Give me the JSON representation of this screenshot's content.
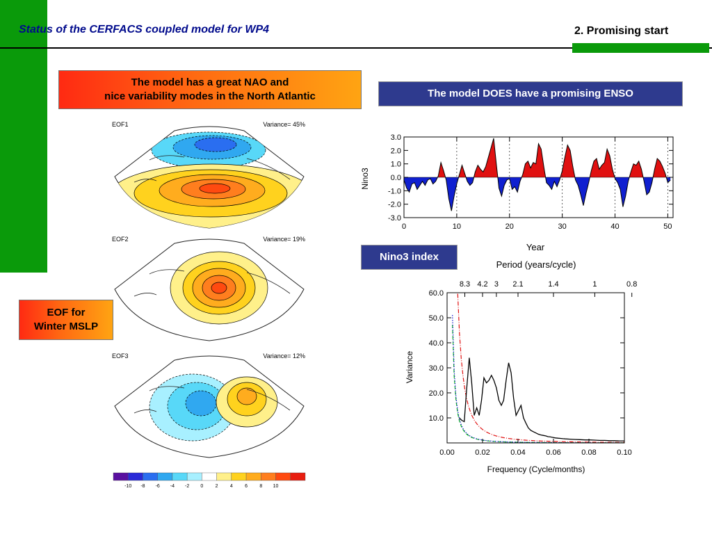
{
  "header": {
    "title": "Status of the CERFACS coupled model for WP4",
    "section": "2. Promising start"
  },
  "boxes": {
    "nao_line1": "The model has a great NAO and",
    "nao_line2": "nice variability modes in the North Atlantic",
    "eof_line1": "EOF for",
    "eof_line2": "Winter MSLP",
    "enso": "The model DOES have a promising ENSO",
    "nino3": "Nino3 index"
  },
  "maps": [
    {
      "label": "EOF1",
      "variance": "Variance= 45%"
    },
    {
      "label": "EOF2",
      "variance": "Variance= 19%"
    },
    {
      "label": "EOF3",
      "variance": "Variance= 12%"
    }
  ],
  "colorbar": {
    "ticks": [
      "-10",
      "-8",
      "-6",
      "-4",
      "-2",
      "0",
      "2",
      "4",
      "6",
      "8",
      "10"
    ],
    "colors": [
      "#5a10a0",
      "#2a2ad8",
      "#2a6ef0",
      "#30a8f0",
      "#58d8f8",
      "#a8f0ff",
      "#ffffff",
      "#fff08a",
      "#ffd21e",
      "#ffac1e",
      "#ff7e1e",
      "#ff4a10",
      "#e81e10"
    ]
  },
  "colors": {
    "positive": "#e01010",
    "negative": "#1020d0",
    "brand_green": "#0a9a0a"
  },
  "chart_data": [
    {
      "type": "area",
      "ylabel": "Nino3",
      "xlabel": "Year",
      "xlim": [
        0,
        51
      ],
      "ylim": [
        -3,
        3
      ],
      "xticks": [
        0,
        10,
        20,
        30,
        40,
        50
      ],
      "yticks": [
        "3.0",
        "2.0",
        "1.0",
        "0.0",
        "-1.0",
        "-2.0",
        "-3.0"
      ],
      "dashed_verticals": [
        10,
        20,
        30,
        40,
        50
      ],
      "x": [
        0,
        0.5,
        1,
        1.5,
        2,
        2.5,
        3,
        3.5,
        4,
        4.5,
        5,
        5.5,
        6,
        6.5,
        7,
        7.5,
        8,
        8.5,
        9,
        9.5,
        10,
        10.5,
        11,
        11.5,
        12,
        12.5,
        13,
        13.5,
        14,
        14.5,
        15,
        15.5,
        16,
        16.5,
        17,
        17.5,
        18,
        18.5,
        19,
        19.5,
        20,
        20.5,
        21,
        21.5,
        22,
        22.5,
        23,
        23.5,
        24,
        24.5,
        25,
        25.5,
        26,
        26.5,
        27,
        27.5,
        28,
        28.5,
        29,
        29.5,
        30,
        30.5,
        31,
        31.5,
        32,
        32.5,
        33,
        33.5,
        34,
        34.5,
        35,
        35.5,
        36,
        36.5,
        37,
        37.5,
        38,
        38.5,
        39,
        39.5,
        40,
        40.5,
        41,
        41.5,
        42,
        42.5,
        43,
        43.5,
        44,
        44.5,
        45,
        45.5,
        46,
        46.5,
        47,
        47.5,
        48,
        48.5,
        49,
        49.5,
        50,
        50.5
      ],
      "y": [
        -0.2,
        -0.8,
        -1.1,
        -0.5,
        -0.4,
        -0.9,
        -0.6,
        -0.3,
        -0.6,
        -0.2,
        -0.1,
        -0.5,
        -0.3,
        0.1,
        1.1,
        0.5,
        -0.2,
        -1.6,
        -2.5,
        -1.4,
        -0.5,
        0.2,
        0.9,
        0.3,
        -0.3,
        -0.6,
        -0.4,
        0.4,
        0.9,
        0.6,
        0.4,
        0.8,
        1.5,
        2.2,
        2.9,
        1.0,
        -0.8,
        -1.4,
        -0.6,
        -0.2,
        -0.1,
        -0.9,
        -0.7,
        -1.1,
        -0.3,
        0.2,
        1.0,
        1.2,
        0.7,
        1.1,
        1.0,
        2.5,
        2.1,
        0.8,
        -0.4,
        -0.6,
        -0.9,
        -0.3,
        -0.7,
        -0.2,
        0.5,
        1.5,
        2.4,
        2.0,
        0.8,
        -0.2,
        -0.6,
        -1.3,
        -2.1,
        -1.2,
        -0.4,
        0.5,
        1.2,
        1.4,
        0.6,
        0.9,
        1.1,
        2.1,
        1.6,
        0.6,
        -0.1,
        -0.4,
        -0.9,
        -2.2,
        -1.4,
        -0.3,
        0.4,
        1.0,
        0.9,
        1.2,
        0.6,
        -0.3,
        -1.3,
        -1.1,
        -0.4,
        0.6,
        1.4,
        1.2,
        0.8,
        0.3,
        -0.4,
        -0.2
      ]
    },
    {
      "type": "line",
      "ylabel": "Variance",
      "xlabel": "Frequency (Cycle/months)",
      "top_axis_label": "Period (years/cycle)",
      "top_ticks": [
        "8.3",
        "4.2",
        "3",
        "2.1",
        "1.4",
        "1",
        "0.8"
      ],
      "top_tick_freqs": [
        0.01,
        0.02,
        0.0278,
        0.04,
        0.06,
        0.0833,
        0.1042
      ],
      "xlim": [
        0,
        0.1
      ],
      "ylim": [
        0,
        60
      ],
      "xticks": [
        "0.00",
        "0.02",
        "0.04",
        "0.06",
        "0.08",
        "0.10"
      ],
      "yticks": [
        "10.0",
        "20.0",
        "30.0",
        "40.0",
        "50.0",
        "60.0"
      ],
      "series": [
        {
          "style": "black-solid",
          "x": [
            0.0069,
            0.0083,
            0.0097,
            0.011,
            0.0125,
            0.0139,
            0.0153,
            0.0167,
            0.0181,
            0.0194,
            0.0208,
            0.0222,
            0.0236,
            0.025,
            0.0264,
            0.0278,
            0.0292,
            0.0306,
            0.0319,
            0.0333,
            0.0347,
            0.0361,
            0.0375,
            0.0389,
            0.0403,
            0.0417,
            0.0431,
            0.0444,
            0.0458,
            0.0472,
            0.0486,
            0.05,
            0.0514,
            0.0528,
            0.0542,
            0.0556,
            0.0569,
            0.0583,
            0.0597,
            0.0611,
            0.0625,
            0.0639,
            0.0653,
            0.0667,
            0.0694,
            0.0722,
            0.075,
            0.0778,
            0.0806,
            0.0833,
            0.0861,
            0.0889,
            0.0917,
            0.0944,
            0.0972,
            0.1
          ],
          "y": [
            10,
            9,
            8.5,
            21,
            34,
            24,
            11,
            14,
            11,
            17,
            26,
            24,
            25,
            27,
            25,
            22,
            17,
            15,
            17,
            25,
            32,
            28,
            18,
            11,
            13,
            15,
            10,
            8,
            6,
            5,
            4.5,
            4,
            3.5,
            3.2,
            3,
            2.8,
            2.5,
            2.4,
            2.2,
            2,
            1.9,
            1.8,
            1.7,
            1.6,
            1.5,
            1.4,
            1.3,
            1.2,
            1.2,
            1.1,
            1,
            1,
            0.9,
            0.9,
            0.8,
            0.8
          ]
        },
        {
          "style": "red-dashdot",
          "a": 0.33,
          "b": 0.65
        },
        {
          "style": "green-dashed",
          "a": 0.17,
          "b": 0.25
        },
        {
          "style": "blue-dotted",
          "a": 0.23,
          "b": 0.2
        }
      ]
    }
  ]
}
